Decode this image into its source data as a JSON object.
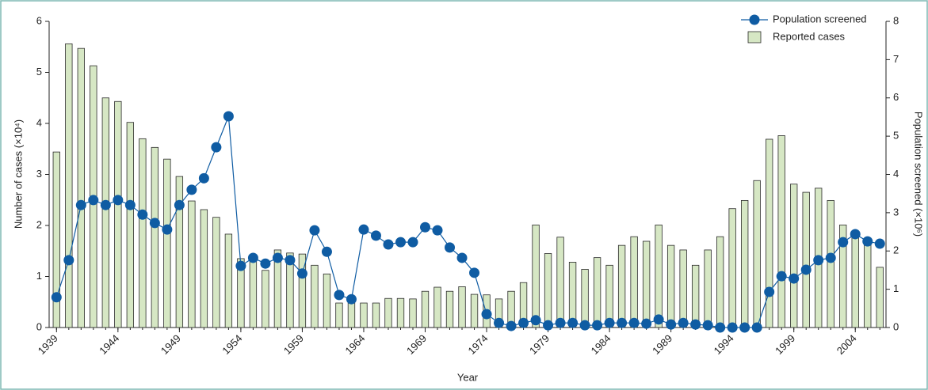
{
  "chart_data": {
    "type": "bar",
    "x_label": "Year",
    "y_label": "Number of cases (×10⁴)",
    "y2_label": "Population screened (×10⁶)",
    "x": [
      1939,
      1940,
      1941,
      1942,
      1943,
      1944,
      1945,
      1946,
      1947,
      1948,
      1949,
      1950,
      1951,
      1952,
      1953,
      1954,
      1955,
      1956,
      1957,
      1958,
      1959,
      1960,
      1961,
      1962,
      1963,
      1964,
      1965,
      1966,
      1967,
      1968,
      1969,
      1970,
      1971,
      1972,
      1973,
      1974,
      1975,
      1976,
      1977,
      1978,
      1979,
      1980,
      1981,
      1982,
      1983,
      1984,
      1985,
      1986,
      1987,
      1988,
      1989,
      1990,
      1991,
      1992,
      1993,
      1994,
      1995,
      1996,
      1997,
      1998,
      1999,
      2000,
      2001,
      2002,
      2003,
      2004,
      2005,
      2006
    ],
    "series": [
      {
        "name": "Reported cases",
        "type": "bar",
        "color": "#d6e7c4",
        "edge": "#2a2a2a",
        "values": [
          3.44,
          5.56,
          5.47,
          5.13,
          4.5,
          4.43,
          4.02,
          3.7,
          3.53,
          3.3,
          2.96,
          2.48,
          2.31,
          2.16,
          1.83,
          1.35,
          1.36,
          1.12,
          1.52,
          1.46,
          1.44,
          1.22,
          1.05,
          0.48,
          0.5,
          0.48,
          0.48,
          0.57,
          0.57,
          0.56,
          0.71,
          0.79,
          0.71,
          0.8,
          0.65,
          0.64,
          0.56,
          0.71,
          0.88,
          2.01,
          1.45,
          1.77,
          1.28,
          1.14,
          1.37,
          1.22,
          1.61,
          1.78,
          1.69,
          2.01,
          1.61,
          1.52,
          1.22,
          1.52,
          1.78,
          2.33,
          2.49,
          2.88,
          3.69,
          3.76,
          2.81,
          2.65,
          2.73,
          2.49,
          2.01,
          1.8,
          1.75,
          1.18
        ]
      },
      {
        "name": "Population screened",
        "type": "line",
        "axis": "y2",
        "color": "#0f5ca3",
        "values": [
          0.79,
          1.76,
          3.2,
          3.33,
          3.2,
          3.33,
          3.2,
          2.95,
          2.73,
          2.56,
          3.2,
          3.6,
          3.9,
          4.71,
          5.52,
          1.61,
          1.82,
          1.67,
          1.82,
          1.76,
          1.41,
          2.54,
          1.98,
          0.85,
          0.74,
          2.56,
          2.4,
          2.17,
          2.23,
          2.23,
          2.62,
          2.54,
          2.09,
          1.82,
          1.43,
          0.35,
          0.12,
          0.04,
          0.12,
          0.19,
          0.06,
          0.12,
          0.12,
          0.06,
          0.06,
          0.12,
          0.12,
          0.12,
          0.1,
          0.21,
          0.08,
          0.12,
          0.08,
          0.06,
          0,
          0,
          0,
          0,
          0.93,
          1.34,
          1.28,
          1.51,
          1.76,
          1.82,
          2.23,
          2.44,
          2.25,
          2.19
        ]
      }
    ],
    "xlim": [
      1938.4,
      2006.5
    ],
    "xticks": [
      1939,
      1944,
      1949,
      1954,
      1959,
      1964,
      1969,
      1974,
      1979,
      1984,
      1989,
      1994,
      1999,
      2004
    ],
    "ylim": [
      0,
      6
    ],
    "yticks": [
      0,
      1,
      2,
      3,
      4,
      5,
      6
    ],
    "y2lim": [
      0,
      8
    ],
    "y2ticks": [
      0,
      1,
      2,
      3,
      4,
      5,
      6,
      7,
      8
    ],
    "legend": "top-right"
  }
}
